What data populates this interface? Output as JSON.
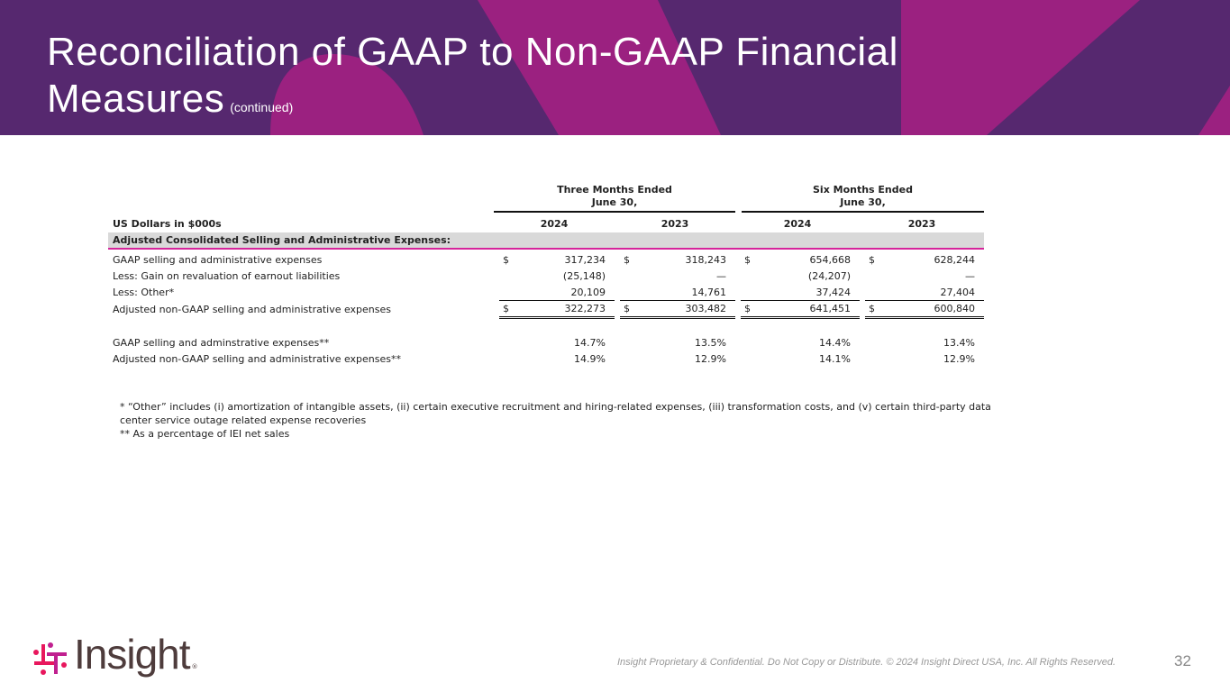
{
  "header": {
    "title_line1": "Reconciliation of GAAP to Non-GAAP Financial",
    "title_line2": "Measures",
    "title_suffix": "(continued)"
  },
  "table": {
    "unit_label": "US Dollars in $000s",
    "groups": [
      {
        "line1": "Three Months Ended",
        "line2": "June 30,"
      },
      {
        "line1": "Six Months Ended",
        "line2": "June 30,"
      }
    ],
    "years": [
      "2024",
      "2023",
      "2024",
      "2023"
    ],
    "section_title": "Adjusted Consolidated Selling and Administrative Expenses:",
    "rows": [
      {
        "label": "GAAP selling and administrative expenses",
        "cells": [
          {
            "cur": "$",
            "v": "317,234"
          },
          {
            "cur": "$",
            "v": "318,243"
          },
          {
            "cur": "$",
            "v": "654,668"
          },
          {
            "cur": "$",
            "v": "628,244"
          }
        ]
      },
      {
        "label": "Less: Gain on revaluation of earnout liabilities",
        "cells": [
          {
            "cur": "",
            "v": "(25,148)"
          },
          {
            "cur": "",
            "v": "—"
          },
          {
            "cur": "",
            "v": "(24,207)"
          },
          {
            "cur": "",
            "v": "—"
          }
        ]
      },
      {
        "label": "Less: Other*",
        "cells": [
          {
            "cur": "",
            "v": "20,109"
          },
          {
            "cur": "",
            "v": "14,761"
          },
          {
            "cur": "",
            "v": "37,424"
          },
          {
            "cur": "",
            "v": "27,404"
          }
        ]
      },
      {
        "label": "Adjusted non-GAAP selling and administrative expenses",
        "cells": [
          {
            "cur": "$",
            "v": "322,273"
          },
          {
            "cur": "$",
            "v": "303,482"
          },
          {
            "cur": "$",
            "v": "641,451"
          },
          {
            "cur": "$",
            "v": "600,840"
          }
        ]
      }
    ],
    "pct_rows": [
      {
        "label": "GAAP selling and adminstrative expenses**",
        "cells": [
          "14.7%",
          "13.5%",
          "14.4%",
          "13.4%"
        ]
      },
      {
        "label": "Adjusted non-GAAP selling and administrative expenses**",
        "cells": [
          "14.9%",
          "12.9%",
          "14.1%",
          "12.9%"
        ]
      }
    ]
  },
  "footnotes": {
    "note1": "* “Other” includes (i) amortization of intangible assets, (ii) certain executive recruitment and hiring-related expenses, (iii) transformation costs, and (v) certain third-party data center service outage related expense recoveries",
    "note2": "** As a percentage of IEI net sales"
  },
  "footer": {
    "confidential": "Insight Proprietary & Confidential. Do Not Copy or Distribute. © 2024 Insight Direct USA, Inc. All Rights Reserved.",
    "page_number": "32",
    "logo_text": "Insight",
    "logo_reg": "®"
  },
  "colors": {
    "banner": "#56286f",
    "magenta": "#9b2180",
    "accent_line": "#d6249b"
  }
}
